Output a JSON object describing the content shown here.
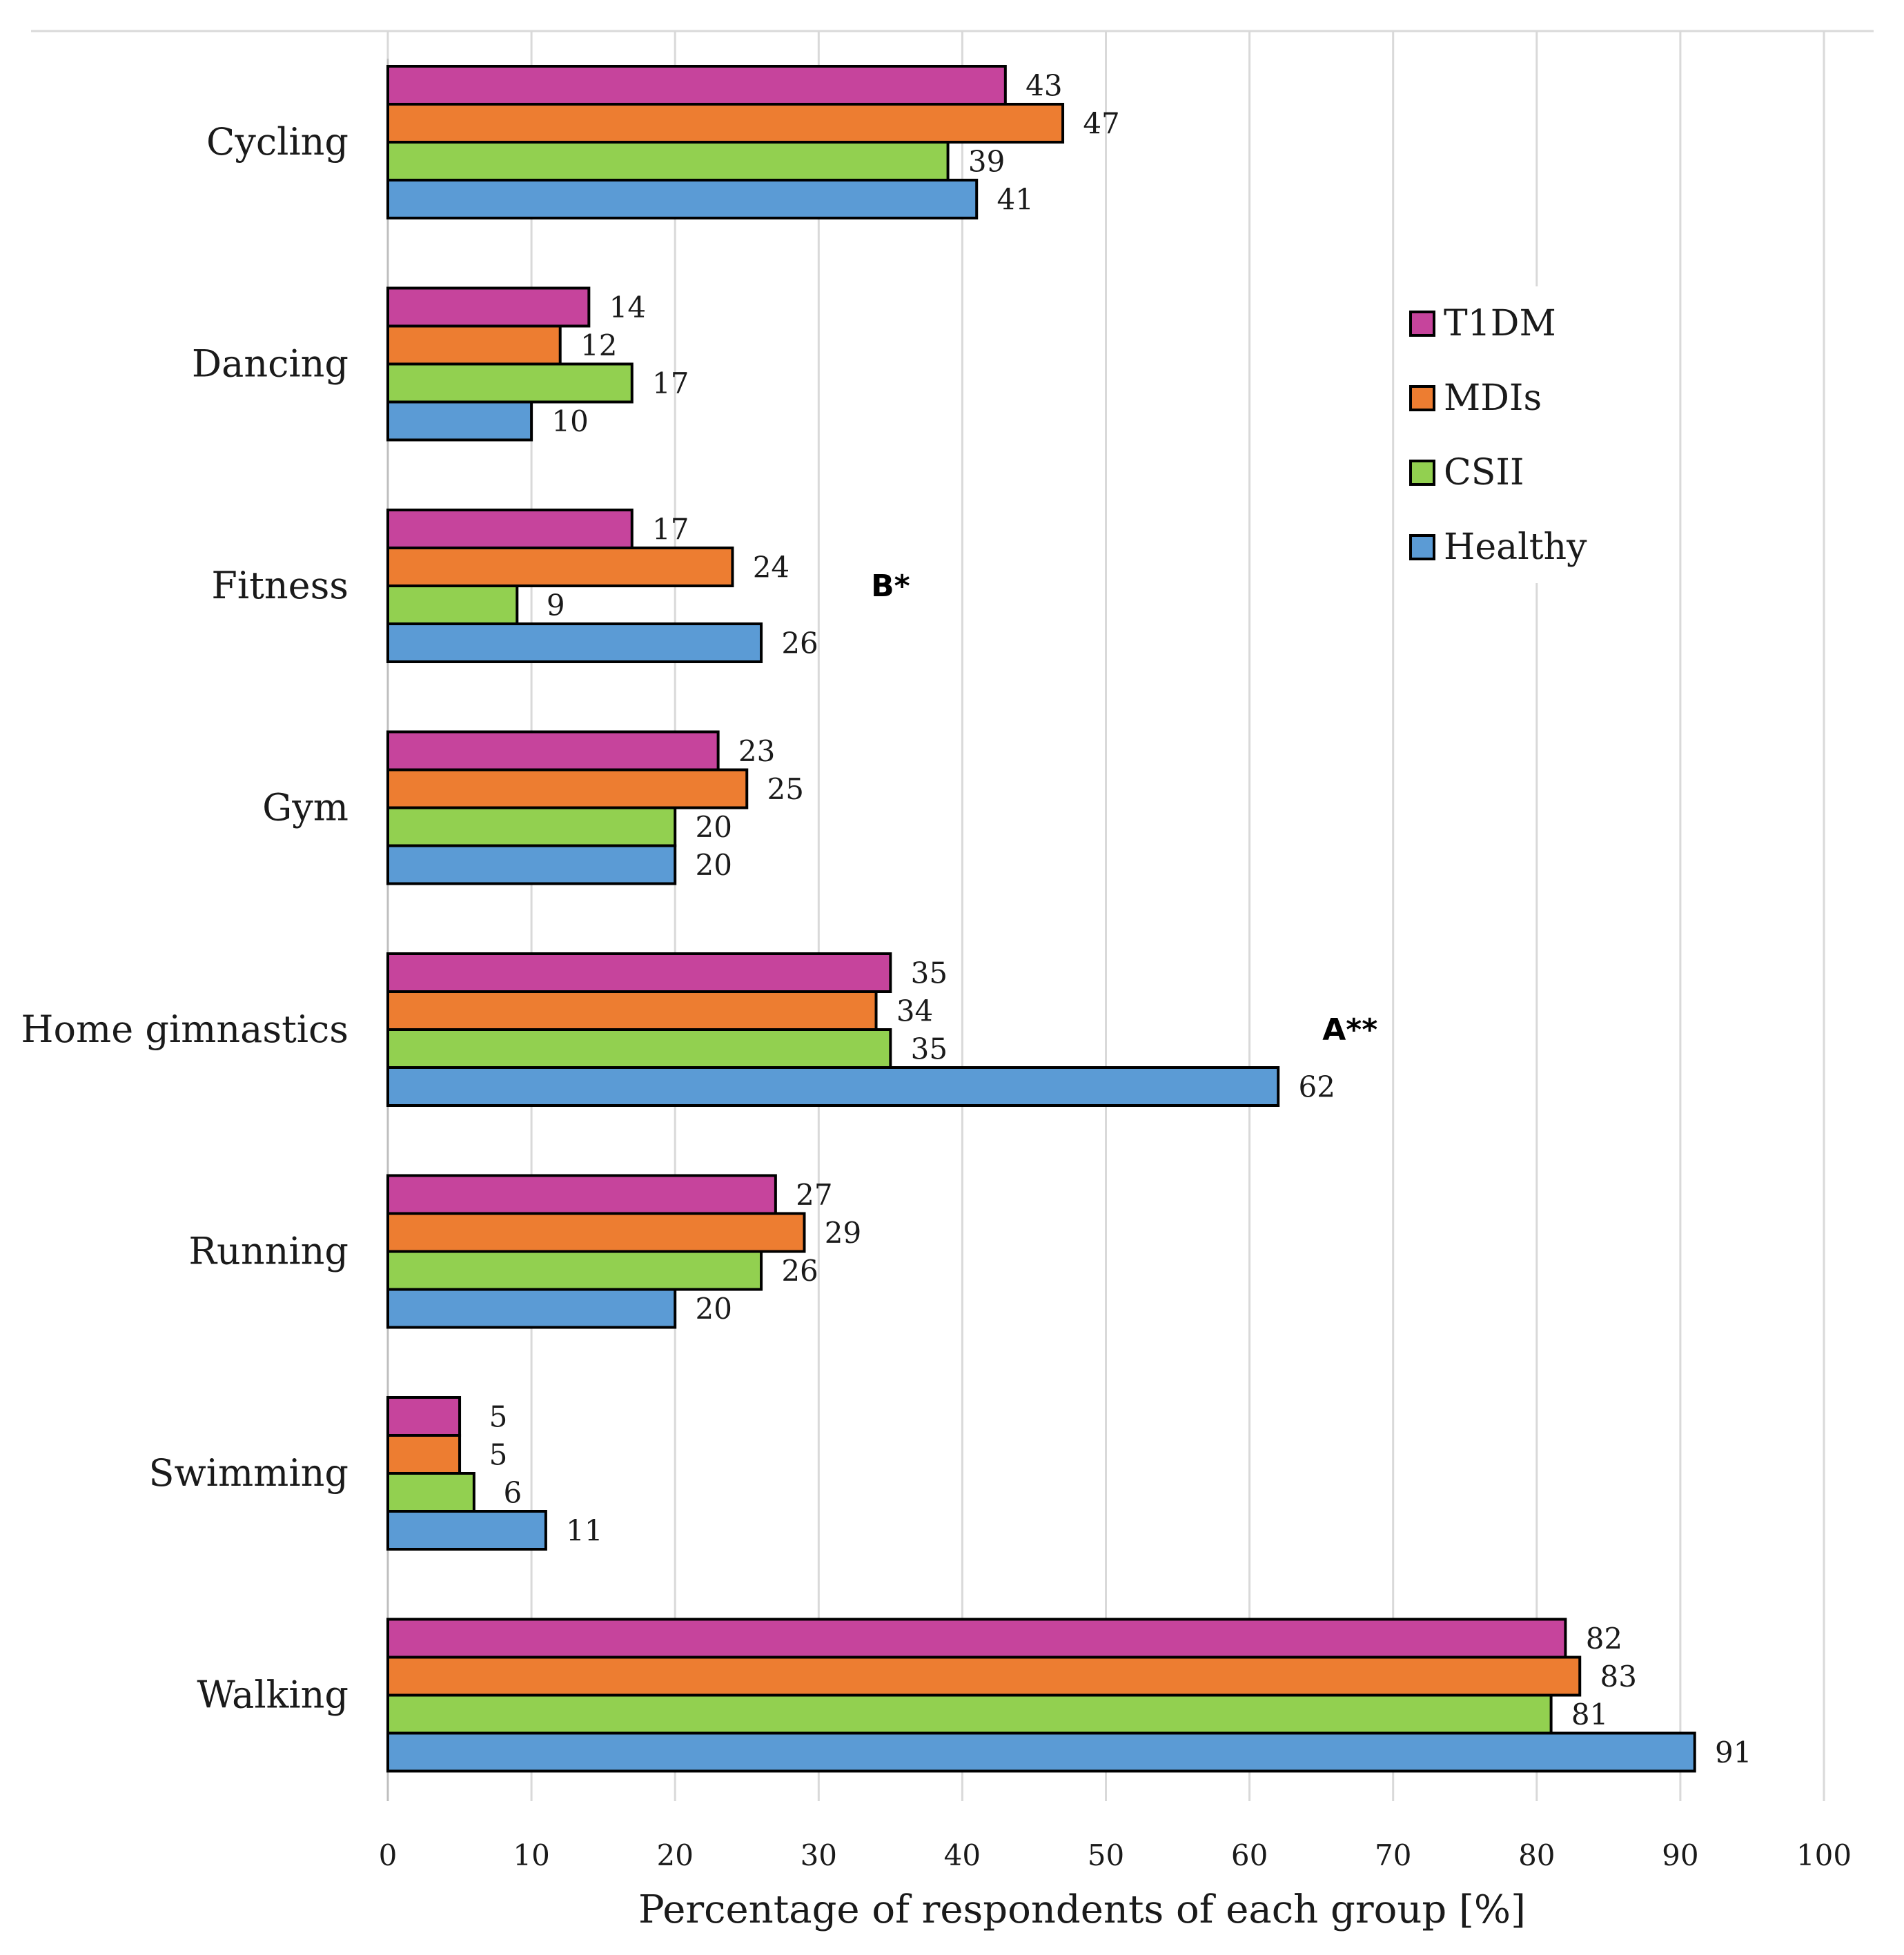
{
  "chart_data": {
    "type": "bar",
    "orientation": "horizontal",
    "categories": [
      "Cycling",
      "Dancing",
      "Fitness",
      "Gym",
      "Home gimnastics",
      "Running",
      "Swimming",
      "Walking"
    ],
    "series": [
      {
        "name": "T1DM",
        "color": "#c6449c",
        "values": [
          43,
          14,
          17,
          23,
          35,
          27,
          5,
          82
        ]
      },
      {
        "name": "MDIs",
        "color": "#ed7d31",
        "values": [
          47,
          12,
          24,
          25,
          34,
          29,
          5,
          83
        ]
      },
      {
        "name": "CSII",
        "color": "#92d050",
        "values": [
          39,
          17,
          9,
          20,
          35,
          26,
          6,
          81
        ]
      },
      {
        "name": "Healthy",
        "color": "#5b9bd5",
        "values": [
          41,
          10,
          26,
          20,
          62,
          20,
          11,
          91
        ]
      }
    ],
    "title": "",
    "xlabel": "Percentage of respondents of each group [%]",
    "ylabel": "",
    "xlim": [
      0,
      100
    ],
    "xticks": [
      0,
      10,
      20,
      30,
      40,
      50,
      60,
      70,
      80,
      90,
      100
    ],
    "grid": true,
    "legend_position": "top-right",
    "annotations": [
      {
        "text": "B*",
        "category": "Fitness",
        "x": 35
      },
      {
        "text": "A**",
        "category": "Home gimnastics",
        "x": 67
      }
    ]
  }
}
